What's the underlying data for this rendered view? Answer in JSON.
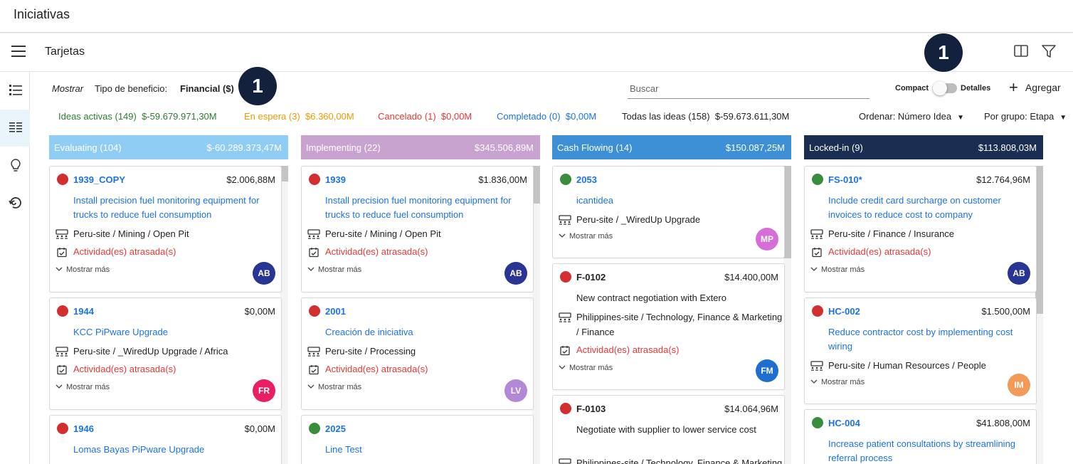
{
  "app": {
    "title": "Iniciativas"
  },
  "view": {
    "title": "Tarjetas"
  },
  "badges": {
    "one": "1",
    "two": "1"
  },
  "filter": {
    "mostrar": "Mostrar",
    "tipo_label": "Tipo de beneficio:",
    "tipo_value": "Financial ($)",
    "search_placeholder": "Buscar",
    "compact": "Compact",
    "detalles": "Detalles",
    "agregar": "Agregar"
  },
  "stats": {
    "activas": "Ideas activas (149)",
    "activas_val": "$-59.679.971,30M",
    "espera": "En espera (3)",
    "espera_val": "$6.360,00M",
    "cancelado": "Cancelado (1)",
    "cancelado_val": "$0,00M",
    "completado": "Completado (0)",
    "completado_val": "$0,00M",
    "todas": "Todas las ideas (158)",
    "todas_val": "$-59.673.611,30M",
    "ordenar": "Ordenar: Número Idea",
    "grupo": "Por grupo: Etapa"
  },
  "colors": {
    "red": "#d32f2f",
    "green": "#388e3c",
    "evaluating": "#90cdf4",
    "implementing": "#c9a3cf",
    "cash": "#3d8fd6",
    "locked": "#1a2e52"
  },
  "columns": [
    {
      "title": "Evaluating (104)",
      "value": "$-60.289.373,47M",
      "cards": [
        {
          "id": "1939_COPY",
          "value": "$2.006,88M",
          "desc": "Install precision fuel monitoring equipment for trucks to reduce fuel consumption",
          "loc": "Peru-site / Mining / Open Pit",
          "act": "Actividad(es) atrasada(s)",
          "more": "Mostrar más",
          "avatar": "AB"
        },
        {
          "id": "1944",
          "value": "$0,00M",
          "desc": "KCC PiPware Upgrade",
          "loc": "Peru-site / _WiredUp Upgrade / Africa",
          "act": "Actividad(es) atrasada(s)",
          "more": "Mostrar más",
          "avatar": "FR"
        },
        {
          "id": "1946",
          "value": "$0,00M",
          "desc": "Lomas Bayas PiPware Upgrade"
        }
      ]
    },
    {
      "title": "Implementing (22)",
      "value": "$345.506,89M",
      "cards": [
        {
          "id": "1939",
          "value": "$1.836,00M",
          "desc": "Install precision fuel monitoring equipment for trucks to reduce fuel consumption",
          "loc": "Peru-site / Mining / Open Pit",
          "act": "Actividad(es) atrasada(s)",
          "more": "Mostrar más",
          "avatar": "AB"
        },
        {
          "id": "2001",
          "value": "",
          "desc": "Creación de iniciativa",
          "loc": "Peru-site / Processing",
          "act": "Actividad(es) atrasada(s)",
          "more": "Mostrar más",
          "avatar": "LV"
        },
        {
          "id": "2025",
          "value": "",
          "desc": "Line Test"
        }
      ]
    },
    {
      "title": "Cash Flowing (14)",
      "value": "$150.087,25M",
      "cards": [
        {
          "id": "2053",
          "value": "",
          "desc": "icantidea",
          "loc": "Peru-site / _WiredUp Upgrade",
          "more": "Mostrar más",
          "avatar": "MP"
        },
        {
          "id": "F-0102",
          "value": "$14.400,00M",
          "desc": "New contract negotiation with Extero",
          "loc": "Philippines-site / Technology, Finance & Marketing / Finance",
          "act": "Actividad(es) atrasada(s)",
          "more": "Mostrar más",
          "avatar": "FM"
        },
        {
          "id": "F-0103",
          "value": "$14.064,96M",
          "desc": "Negotiate with supplier to lower service cost",
          "loc": "Philippines-site / Technology, Finance & Marketing / Finance"
        }
      ]
    },
    {
      "title": "Locked-in (9)",
      "value": "$113.808,03M",
      "cards": [
        {
          "id": "FS-010*",
          "value": "$12.764,96M",
          "desc": "Include credit card surcharge on customer invoices to reduce cost to company",
          "loc": "Peru-site / Finance / Insurance",
          "act": "Actividad(es) atrasada(s)",
          "more": "Mostrar más",
          "avatar": "AB"
        },
        {
          "id": "HC-002",
          "value": "$1.500,00M",
          "desc": "Reduce contractor cost by implementing cost wiring",
          "loc": "Peru-site / Human Resources / People",
          "more": "Mostrar más",
          "avatar": "IM"
        },
        {
          "id": "HC-004",
          "value": "$41.808,00M",
          "desc": "Increase patient consultations by streamlining referral process"
        }
      ]
    }
  ]
}
